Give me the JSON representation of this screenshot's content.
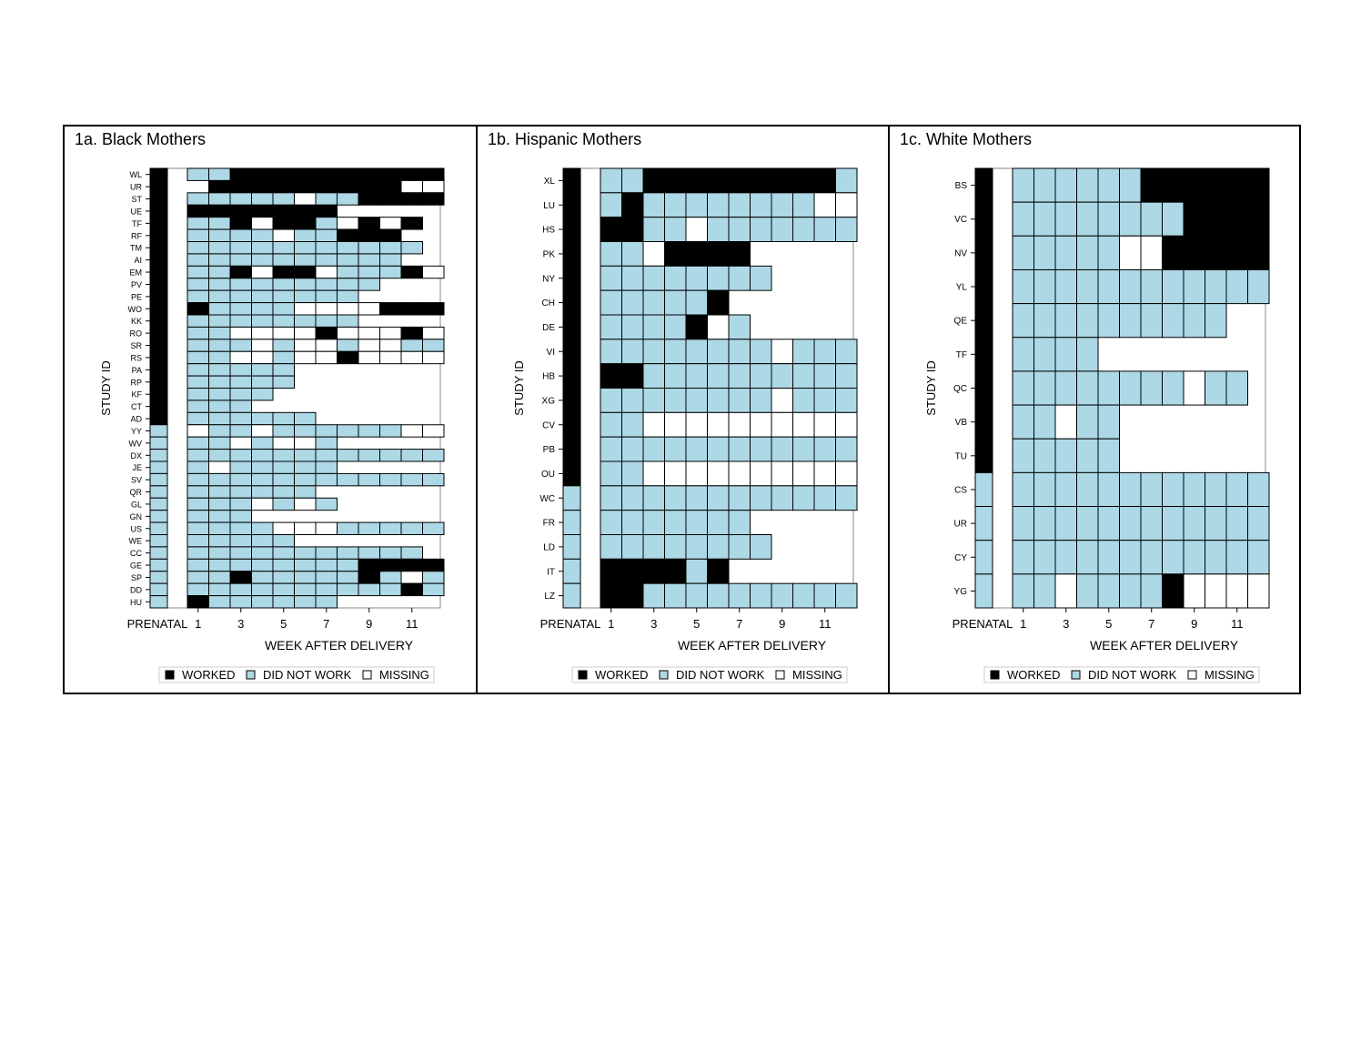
{
  "colors": {
    "worked": "#000000",
    "did_not_work": "#ADD8E6",
    "missing": "#FFFFFF",
    "grid": "#000000"
  },
  "chart_data": [
    {
      "type": "heatmap",
      "title": "1a. Black Mothers",
      "xlabel": "WEEK AFTER DELIVERY",
      "ylabel": "STUDY ID",
      "x_tick_labels": [
        "PRENATAL",
        "1",
        "3",
        "5",
        "7",
        "9",
        "11"
      ],
      "columns": [
        "PRENATAL",
        "1",
        "2",
        "3",
        "4",
        "5",
        "6",
        "7",
        "8",
        "9",
        "10",
        "11",
        "12"
      ],
      "legend": [
        "WORKED",
        "DID NOT WORK",
        "MISSING"
      ],
      "legend_position": "bottom",
      "codes": {
        "W": "WORKED",
        "D": "DID NOT WORK",
        "M": "MISSING",
        "_": "no data"
      },
      "rows": [
        {
          "id": "WL",
          "cells": "WDDWWWWWWWWWW"
        },
        {
          "id": "UR",
          "cells": "W_WWWWWWWWWMM"
        },
        {
          "id": "ST",
          "cells": "WDDDDDMDDWWWW"
        },
        {
          "id": "UE",
          "cells": "WWWWWWWW_____"
        },
        {
          "id": "TF",
          "cells": "WDDWMWWDMWMW_"
        },
        {
          "id": "RF",
          "cells": "WDDDDMDDWWW__"
        },
        {
          "id": "TM",
          "cells": "WDDDDDDDDDDD_"
        },
        {
          "id": "AI",
          "cells": "WDDDDDDDDDD__"
        },
        {
          "id": "EM",
          "cells": "WDDWMWWMDDDWM"
        },
        {
          "id": "PV",
          "cells": "WDDDDDDDDD___"
        },
        {
          "id": "PE",
          "cells": "WDDDDDDDD____"
        },
        {
          "id": "WO",
          "cells": "WWDDDDMMMMWWW"
        },
        {
          "id": "KK",
          "cells": "WDDDDDDDD____"
        },
        {
          "id": "RO",
          "cells": "WDDMMMMWMMMWM"
        },
        {
          "id": "SR",
          "cells": "WDDDMDMMDMMDD"
        },
        {
          "id": "RS",
          "cells": "WDDMMDMMWMMMM"
        },
        {
          "id": "PA",
          "cells": "WDDDDD_______"
        },
        {
          "id": "RP",
          "cells": "WDDDDD_______"
        },
        {
          "id": "KF",
          "cells": "WDDDD________"
        },
        {
          "id": "CT",
          "cells": "WDDD_________"
        },
        {
          "id": "AD",
          "cells": "WDDDDDD______"
        },
        {
          "id": "YY",
          "cells": "DMDDMDDDDDDMM"
        },
        {
          "id": "WV",
          "cells": "DDDMDMMD_____"
        },
        {
          "id": "DX",
          "cells": "DDDDDDDDDDDDD"
        },
        {
          "id": "JE",
          "cells": "DDMDDDDD_____"
        },
        {
          "id": "SV",
          "cells": "DDDDDDDDDDDDD"
        },
        {
          "id": "QR",
          "cells": "DDDDDDD______"
        },
        {
          "id": "GL",
          "cells": "DDDDMDMD_____"
        },
        {
          "id": "GN",
          "cells": "DDDD_________"
        },
        {
          "id": "US",
          "cells": "DDDDDMMMDDDDD"
        },
        {
          "id": "WE",
          "cells": "DDDDDD_______"
        },
        {
          "id": "CC",
          "cells": "DDDDDDDDDDDD_"
        },
        {
          "id": "GE",
          "cells": "DDDDDDDDDWWWW"
        },
        {
          "id": "SP",
          "cells": "DDDWDDDDDWDMD"
        },
        {
          "id": "DD",
          "cells": "DDDDDDDDDDDWD"
        },
        {
          "id": "HU",
          "cells": "DWDDDDDD_____"
        }
      ]
    },
    {
      "type": "heatmap",
      "title": "1b. Hispanic Mothers",
      "xlabel": "WEEK AFTER DELIVERY",
      "ylabel": "STUDY ID",
      "x_tick_labels": [
        "PRENATAL",
        "1",
        "3",
        "5",
        "7",
        "9",
        "11"
      ],
      "columns": [
        "PRENATAL",
        "1",
        "2",
        "3",
        "4",
        "5",
        "6",
        "7",
        "8",
        "9",
        "10",
        "11",
        "12"
      ],
      "legend": [
        "WORKED",
        "DID NOT WORK",
        "MISSING"
      ],
      "legend_position": "bottom",
      "codes": {
        "W": "WORKED",
        "D": "DID NOT WORK",
        "M": "MISSING",
        "_": "no data"
      },
      "rows": [
        {
          "id": "XL",
          "cells": "WDDWWWWWWWWWD"
        },
        {
          "id": "LU",
          "cells": "WDWDDDDDDDDMM"
        },
        {
          "id": "HS",
          "cells": "WWWDDMDDDDDDD"
        },
        {
          "id": "PK",
          "cells": "WDDMWWWW_____"
        },
        {
          "id": "NY",
          "cells": "WDDDDDDDD____"
        },
        {
          "id": "CH",
          "cells": "WDDDDDW______"
        },
        {
          "id": "DE",
          "cells": "WDDDDWMD_____"
        },
        {
          "id": "VI",
          "cells": "WDDDDDDDDMDDD"
        },
        {
          "id": "HB",
          "cells": "WWWDDDDDDDDDD"
        },
        {
          "id": "XG",
          "cells": "WDDDDDDDDMDDD"
        },
        {
          "id": "CV",
          "cells": "WDDMMMMMMMMMM"
        },
        {
          "id": "PB",
          "cells": "WDDDDDDDDDDDD"
        },
        {
          "id": "OU",
          "cells": "WDDMMMMMMMMMM"
        },
        {
          "id": "WC",
          "cells": "DDDDDDDDDDDDD"
        },
        {
          "id": "FR",
          "cells": "DDDDDDDD_____"
        },
        {
          "id": "LD",
          "cells": "DDDDDDDDD____"
        },
        {
          "id": "IT",
          "cells": "DWWWWDW______"
        },
        {
          "id": "LZ",
          "cells": "DWWDDDDDDDDDD"
        }
      ]
    },
    {
      "type": "heatmap",
      "title": "1c. White Mothers",
      "xlabel": "WEEK AFTER DELIVERY",
      "ylabel": "STUDY ID",
      "x_tick_labels": [
        "PRENATAL",
        "1",
        "3",
        "5",
        "7",
        "9",
        "11"
      ],
      "columns": [
        "PRENATAL",
        "1",
        "2",
        "3",
        "4",
        "5",
        "6",
        "7",
        "8",
        "9",
        "10",
        "11",
        "12"
      ],
      "legend": [
        "WORKED",
        "DID NOT WORK",
        "MISSING"
      ],
      "legend_position": "bottom",
      "codes": {
        "W": "WORKED",
        "D": "DID NOT WORK",
        "M": "MISSING",
        "_": "no data"
      },
      "rows": [
        {
          "id": "BS",
          "cells": "WDDDDDDWWWWWW"
        },
        {
          "id": "VC",
          "cells": "WDDDDDDDDWWWW"
        },
        {
          "id": "NV",
          "cells": "WDDDDDMMWWWWW"
        },
        {
          "id": "YL",
          "cells": "WDDDDDDDDDDDD"
        },
        {
          "id": "QE",
          "cells": "WDDDDDDDDDD__"
        },
        {
          "id": "TF",
          "cells": "WDDDD________"
        },
        {
          "id": "QC",
          "cells": "WDDDDDDDDMDD_"
        },
        {
          "id": "VB",
          "cells": "WDDMDD_______"
        },
        {
          "id": "TU",
          "cells": "WDDDDD_______"
        },
        {
          "id": "CS",
          "cells": "DDDDDDDDDDDDD"
        },
        {
          "id": "UR",
          "cells": "DDDDDDDDDDDDD"
        },
        {
          "id": "CY",
          "cells": "DDDDDDDDDDDDD"
        },
        {
          "id": "YG",
          "cells": "DDDMDDDDWMMMM"
        }
      ]
    }
  ]
}
